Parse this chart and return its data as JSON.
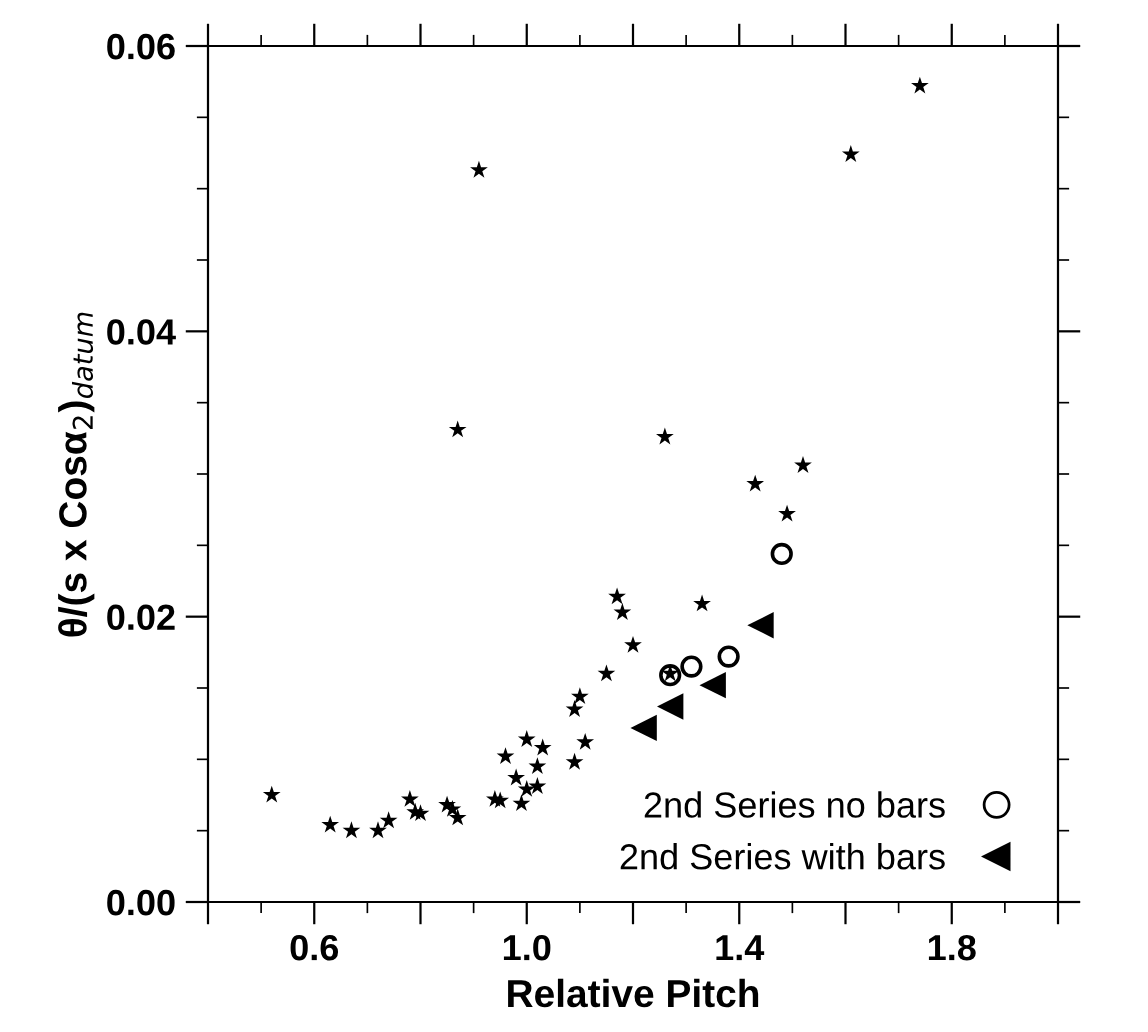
{
  "chart_data": {
    "type": "scatter",
    "xlabel": "Relative Pitch",
    "ylabel": "θ/(s x Cosα$_{2}$)$_{datum}$",
    "xlim": [
      0.4,
      2.0
    ],
    "ylim": [
      0,
      0.06
    ],
    "xticks": [
      {
        "value": 0.4,
        "label": null
      },
      0.6,
      {
        "value": 0.8,
        "label": null
      },
      {
        "value": 1.0,
        "label": "1.0"
      },
      {
        "value": 1.2,
        "label": null
      },
      1.4,
      {
        "value": 1.6,
        "label": null
      },
      1.8,
      {
        "value": 2.0,
        "label": null
      }
    ],
    "yticks": [
      {
        "value": 0,
        "label": "0.00"
      },
      {
        "value": 0.02,
        "label": "0.02"
      },
      {
        "value": 0.04,
        "label": "0.04"
      },
      {
        "value": 0.06,
        "label": "0.06"
      }
    ],
    "grid": false,
    "legend": "bottom right",
    "series": [
      {
        "color": "#000000",
        "marker": "star",
        "x": [
          0.52,
          0.63,
          0.67,
          0.72,
          0.74,
          0.78,
          0.79,
          0.8,
          0.85,
          0.86,
          0.87,
          0.94,
          0.95,
          0.96,
          0.98,
          0.99,
          1.0,
          1.0,
          1.02,
          1.03,
          1.02,
          1.09,
          1.11,
          1.26,
          1.43,
          1.52,
          1.49,
          1.17,
          1.18,
          1.33,
          1.2,
          1.15,
          1.1,
          1.09,
          1.27,
          0.91,
          1.61,
          1.74,
          0.87
        ],
        "values": [
          0.0075,
          0.0054,
          0.005,
          0.005,
          0.0057,
          0.0072,
          0.0063,
          0.0062,
          0.0068,
          0.0065,
          0.0059,
          0.0072,
          0.0071,
          0.0102,
          0.0087,
          0.0069,
          0.0114,
          0.0079,
          0.0081,
          0.0108,
          0.0095,
          0.0098,
          0.0112,
          0.0326,
          0.0293,
          0.0306,
          0.0272,
          0.0214,
          0.0203,
          0.0209,
          0.018,
          0.016,
          0.0144,
          0.0135,
          0.016,
          0.0513,
          0.0524,
          0.0572,
          0.0331
        ]
      },
      {
        "name": "2nd Series no bars",
        "color": "#000000",
        "marker": "circle",
        "x": [
          1.27,
          1.31,
          1.38,
          1.48
        ],
        "values": [
          0.0159,
          0.0165,
          0.0172,
          0.0244
        ]
      },
      {
        "name": "2nd Series with bars",
        "color": "#000000",
        "marker": "triangle",
        "x": [
          1.22,
          1.27,
          1.35,
          1.44
        ],
        "values": [
          0.0122,
          0.0137,
          0.0152,
          0.0194
        ]
      }
    ]
  }
}
